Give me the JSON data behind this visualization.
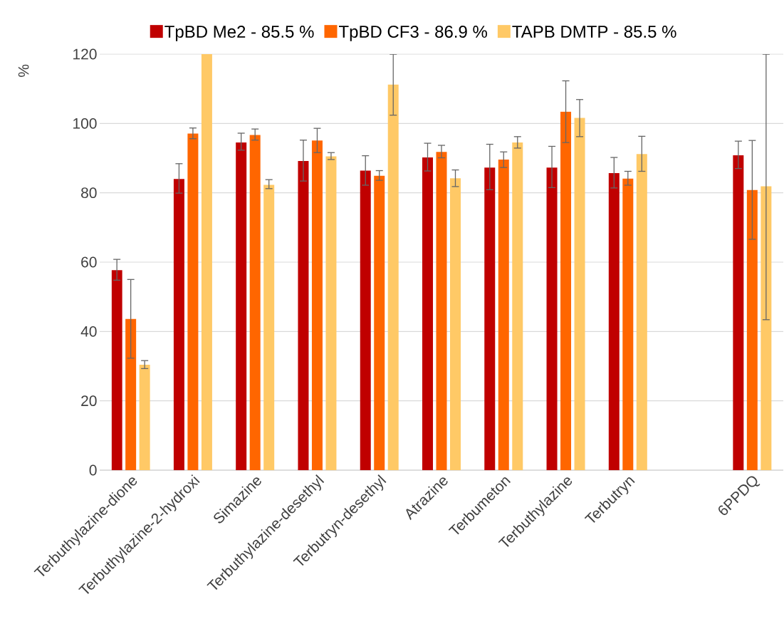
{
  "chart_data": {
    "type": "bar",
    "ylabel": "%",
    "categories": [
      "Terbuthylazine-dione",
      "Terbuthylazine-2-hydroxi",
      "Simazine",
      "Terbuthylazine-desethyl",
      "Terbutryn-desethyl",
      "Atrazine",
      "Terbumeton",
      "Terbuthylazine",
      "Terbutryn",
      null,
      "6PPDQ"
    ],
    "series": [
      {
        "name": "TpBD Me2 - 85.5 %",
        "color": "#c00000",
        "values": [
          57.7,
          84.0,
          94.5,
          89.2,
          86.4,
          90.2,
          87.3,
          87.3,
          85.7,
          null,
          90.8
        ],
        "errors": [
          [
            54.8,
            60.8
          ],
          [
            79.9,
            88.4
          ],
          [
            92.3,
            97.2
          ],
          [
            83.4,
            95.2
          ],
          [
            82.2,
            90.7
          ],
          [
            86.3,
            94.3
          ],
          [
            80.9,
            94.0
          ],
          [
            81.5,
            93.4
          ],
          [
            81.4,
            90.2
          ],
          null,
          [
            87.0,
            94.9
          ]
        ]
      },
      {
        "name": "TpBD CF3 - 86.9 %",
        "color": "#ff6600",
        "values": [
          43.6,
          97.1,
          96.7,
          95.1,
          84.9,
          91.8,
          89.6,
          103.4,
          84.1,
          null,
          80.8
        ],
        "errors": [
          [
            32.3,
            55.0
          ],
          [
            95.6,
            98.7
          ],
          [
            95.2,
            98.4
          ],
          [
            91.6,
            98.6
          ],
          [
            83.6,
            86.4
          ],
          [
            90.1,
            93.7
          ],
          [
            87.3,
            91.8
          ],
          [
            94.5,
            112.3
          ],
          [
            82.2,
            86.2
          ],
          null,
          [
            66.6,
            95.1
          ]
        ]
      },
      {
        "name": "TAPB DMTP - 85.5 %",
        "color": "#ffc966",
        "values": [
          30.4,
          120,
          82.3,
          90.5,
          111.2,
          84.2,
          94.5,
          101.6,
          91.2,
          null,
          81.9
        ],
        "errors": [
          [
            29.3,
            31.6
          ],
          null,
          [
            81.2,
            83.8
          ],
          [
            89.6,
            91.6
          ],
          [
            102.4,
            120
          ],
          [
            81.8,
            86.6
          ],
          [
            92.9,
            96.2
          ],
          [
            96.2,
            106.9
          ],
          [
            86.2,
            96.3
          ],
          null,
          [
            43.4,
            120
          ]
        ]
      }
    ],
    "ylim": [
      0,
      120
    ],
    "yticks": [
      0,
      20,
      40,
      60,
      80,
      100,
      120
    ],
    "grid": "y",
    "legend": "top"
  }
}
